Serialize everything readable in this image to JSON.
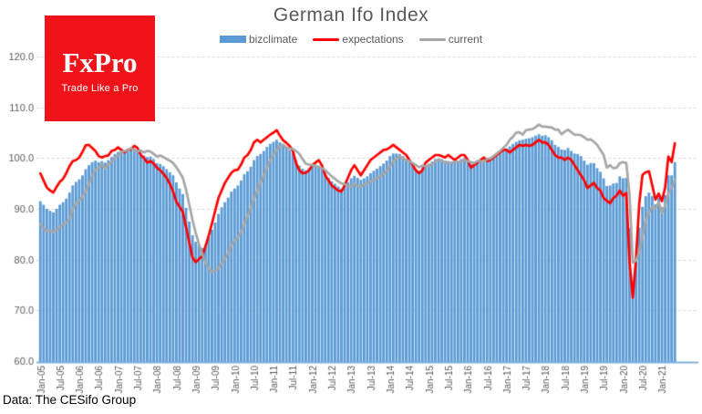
{
  "logo": {
    "title": "FxPro",
    "tagline": "Trade Like a Pro",
    "bg_color": "#F0141A"
  },
  "footer": {
    "source": "Data: The CESifo Group"
  },
  "style": {
    "grid_color": "#D9D9D9",
    "axis_line_color": "#7FB0DE",
    "tick_label_color": "#595959",
    "title_color": "#595959",
    "background": "#FFFFFF"
  },
  "chart_data": {
    "type": "bar",
    "title": "German Ifo Index",
    "frequency": "monthly",
    "x_range": [
      "Jan-05",
      "May-21"
    ],
    "ylim": [
      60,
      120
    ],
    "y_ticks": [
      60,
      70,
      80,
      90,
      100,
      110,
      120
    ],
    "y_tick_labels": [
      "60.0",
      "70.0",
      "80.0",
      "90.0",
      "100.0",
      "110.0",
      "120.0"
    ],
    "grid": "dashed-horizontal",
    "legend_position": "top-center",
    "x_tick_labels": [
      "Jan-05",
      "Jul-05",
      "Jan-06",
      "Jul-06",
      "Jan-07",
      "Jul-07",
      "Jan-08",
      "Jul-08",
      "Jan-09",
      "Jul-09",
      "Jan-10",
      "Jul-10",
      "Jan-11",
      "Jul-11",
      "Jan-12",
      "Jul-12",
      "Jan-13",
      "Jul-13",
      "Jan-14",
      "Jul-14",
      "Jan-15",
      "Jul-15",
      "Jan-16",
      "Jul-16",
      "Jan-17",
      "Jul-17",
      "Jan-18",
      "Jul-18",
      "Jan-19",
      "Jul-19",
      "Jan-20",
      "Jul-20",
      "Jan-21"
    ],
    "x_tick_step_months": 6,
    "series": [
      {
        "name": "bizclimate",
        "type": "bar",
        "color": "#5B9BD5",
        "values": [
          91.5,
          90.8,
          90.0,
          89.6,
          89.3,
          90.0,
          90.8,
          91.3,
          92.0,
          93.2,
          94.6,
          95.3,
          95.8,
          96.6,
          97.8,
          98.6,
          99.2,
          99.5,
          99.2,
          99.4,
          99.1,
          99.6,
          100.2,
          100.8,
          101.2,
          101.4,
          101.2,
          101.5,
          101.8,
          101.9,
          101.6,
          101.0,
          100.5,
          100.2,
          100.3,
          99.8,
          99.0,
          98.8,
          98.4,
          97.8,
          97.2,
          96.6,
          95.2,
          94.0,
          92.9,
          90.2,
          87.5,
          84.8,
          83.5,
          82.9,
          82.3,
          83.0,
          84.3,
          85.9,
          87.3,
          89.0,
          90.3,
          91.3,
          92.2,
          93.4,
          94.0,
          94.6,
          95.6,
          96.8,
          97.4,
          98.3,
          99.6,
          100.4,
          100.8,
          101.4,
          102.2,
          102.8,
          103.2,
          103.6,
          103.1,
          102.8,
          102.1,
          101.6,
          101.0,
          99.6,
          98.5,
          97.9,
          97.6,
          98.0,
          98.4,
          98.6,
          98.5,
          98.0,
          97.0,
          96.1,
          95.4,
          94.9,
          94.4,
          94.0,
          94.6,
          95.2,
          96.0,
          96.5,
          96.1,
          95.7,
          96.0,
          96.4,
          97.0,
          97.5,
          97.9,
          98.4,
          98.9,
          99.5,
          100.4,
          100.9,
          100.9,
          100.8,
          100.4,
          99.9,
          99.3,
          98.4,
          97.8,
          97.5,
          98.0,
          98.6,
          98.9,
          99.3,
          99.8,
          99.9,
          99.8,
          99.5,
          99.4,
          99.3,
          99.4,
          99.5,
          99.8,
          100.0,
          99.5,
          98.8,
          99.1,
          99.2,
          99.4,
          99.6,
          99.5,
          99.6,
          100.0,
          100.5,
          100.9,
          101.4,
          101.9,
          102.3,
          102.8,
          103.2,
          103.5,
          103.6,
          103.8,
          103.9,
          104.1,
          104.4,
          104.7,
          104.4,
          104.5,
          104.1,
          103.5,
          102.6,
          102.2,
          101.7,
          101.6,
          102.0,
          101.4,
          100.9,
          100.8,
          100.4,
          99.5,
          98.7,
          99.0,
          99.0,
          98.0,
          97.3,
          96.0,
          94.5,
          94.6,
          95.0,
          95.1,
          96.4,
          96.0,
          96.1,
          86.2,
          74.4,
          79.7,
          86.3,
          90.4,
          92.5,
          93.2,
          92.5,
          90.9,
          92.2,
          90.3,
          92.7,
          96.6,
          96.6,
          99.2
        ]
      },
      {
        "name": "expectations",
        "type": "line",
        "color": "#FF0000",
        "values": [
          97.0,
          95.6,
          94.2,
          93.6,
          93.2,
          94.3,
          95.3,
          95.9,
          97.0,
          98.4,
          99.4,
          99.6,
          100.1,
          101.2,
          102.5,
          102.6,
          102.0,
          101.4,
          100.4,
          100.1,
          100.4,
          100.5,
          101.4,
          101.6,
          102.1,
          101.6,
          101.1,
          101.6,
          101.7,
          102.4,
          102.0,
          100.6,
          100.0,
          99.1,
          99.4,
          98.9,
          98.1,
          97.6,
          96.9,
          96.1,
          94.9,
          93.4,
          91.4,
          90.4,
          89.4,
          86.4,
          83.4,
          80.4,
          79.5,
          80.1,
          80.7,
          82.6,
          84.7,
          87.1,
          89.6,
          92.1,
          93.6,
          95.1,
          96.1,
          97.1,
          97.6,
          97.7,
          98.7,
          100.1,
          100.6,
          101.6,
          103.1,
          103.6,
          103.1,
          103.6,
          104.1,
          104.6,
          105.0,
          105.5,
          104.4,
          103.5,
          103.0,
          102.4,
          101.4,
          99.0,
          97.6,
          97.0,
          97.1,
          97.6,
          98.6,
          99.1,
          99.6,
          98.5,
          96.6,
          95.6,
          94.6,
          94.1,
          93.6,
          93.4,
          94.6,
          96.1,
          97.6,
          98.6,
          97.6,
          96.6,
          97.6,
          98.6,
          99.6,
          100.1,
          100.6,
          101.1,
          101.6,
          101.7,
          102.1,
          102.6,
          102.1,
          101.6,
          101.1,
          100.6,
          99.6,
          98.6,
          97.6,
          97.0,
          97.6,
          99.1,
          99.6,
          100.1,
          100.6,
          100.6,
          100.4,
          100.1,
          100.6,
          100.1,
          99.6,
          100.1,
          100.6,
          100.6,
          99.6,
          98.1,
          98.6,
          99.1,
          99.6,
          100.1,
          99.4,
          99.6,
          100.1,
          100.6,
          101.1,
          101.6,
          101.6,
          101.1,
          101.6,
          102.1,
          102.6,
          102.4,
          102.6,
          102.4,
          102.6,
          103.1,
          103.6,
          103.1,
          103.1,
          102.6,
          101.6,
          100.6,
          100.1,
          100.1,
          99.6,
          100.1,
          99.6,
          98.6,
          97.6,
          96.6,
          95.6,
          94.1,
          94.6,
          95.1,
          94.1,
          93.6,
          92.1,
          91.6,
          91.1,
          92.1,
          92.6,
          93.6,
          92.6,
          93.1,
          79.7,
          72.5,
          80.1,
          91.0,
          96.7,
          97.2,
          97.4,
          94.7,
          91.8,
          93.0,
          91.5,
          94.2,
          100.3,
          99.2,
          102.9
        ]
      },
      {
        "name": "current",
        "type": "line",
        "color": "#A6A6A6",
        "values": [
          87.0,
          86.2,
          85.6,
          85.7,
          85.4,
          85.8,
          86.4,
          86.9,
          87.2,
          88.1,
          89.9,
          91.1,
          91.6,
          92.4,
          93.5,
          94.9,
          96.5,
          97.7,
          98.1,
          98.8,
          97.9,
          98.8,
          99.2,
          100.1,
          100.5,
          101.2,
          101.4,
          101.5,
          102.0,
          101.5,
          101.3,
          101.5,
          101.1,
          101.4,
          101.3,
          100.8,
          100.3,
          100.5,
          100.2,
          99.8,
          99.5,
          99.0,
          98.2,
          97.2,
          96.1,
          93.8,
          90.8,
          87.8,
          85.2,
          83.0,
          81.2,
          79.5,
          78.2,
          77.6,
          77.8,
          78.3,
          79.2,
          80.2,
          81.3,
          82.8,
          83.8,
          84.4,
          85.5,
          87.0,
          88.6,
          90.1,
          92.0,
          93.6,
          95.1,
          96.6,
          98.1,
          99.6,
          100.6,
          101.6,
          102.3,
          102.6,
          102.1,
          101.9,
          101.8,
          101.4,
          100.8,
          99.8,
          98.9,
          98.7,
          98.6,
          98.5,
          98.2,
          98.0,
          97.6,
          97.0,
          96.4,
          95.9,
          95.4,
          95.0,
          94.9,
          94.5,
          94.4,
          94.9,
          94.5,
          94.4,
          94.8,
          94.9,
          95.4,
          95.7,
          96.0,
          96.4,
          96.9,
          97.4,
          98.3,
          99.3,
          99.9,
          100.3,
          99.9,
          99.6,
          99.4,
          99.0,
          98.6,
          98.2,
          98.5,
          98.4,
          98.4,
          98.8,
          99.3,
          99.7,
          99.4,
          99.2,
          99.0,
          99.0,
          99.3,
          99.2,
          99.3,
          99.7,
          99.4,
          99.2,
          99.0,
          99.4,
          99.4,
          99.3,
          99.8,
          99.9,
          100.4,
          100.9,
          101.4,
          102.0,
          102.6,
          103.6,
          104.2,
          105.0,
          105.1,
          104.6,
          105.5,
          105.6,
          105.7,
          106.1,
          106.6,
          106.2,
          106.2,
          106.1,
          106.0,
          105.6,
          105.6,
          104.7,
          105.2,
          105.6,
          105.1,
          104.6,
          104.6,
          104.5,
          104.1,
          103.6,
          103.7,
          103.2,
          102.6,
          101.6,
          100.6,
          98.1,
          98.6,
          98.0,
          98.1,
          99.0,
          99.2,
          99.0,
          92.9,
          79.4,
          79.8,
          81.5,
          84.5,
          87.9,
          89.2,
          90.4,
          90.0,
          91.3,
          89.2,
          90.6,
          93.0,
          94.1,
          95.7
        ]
      }
    ]
  }
}
